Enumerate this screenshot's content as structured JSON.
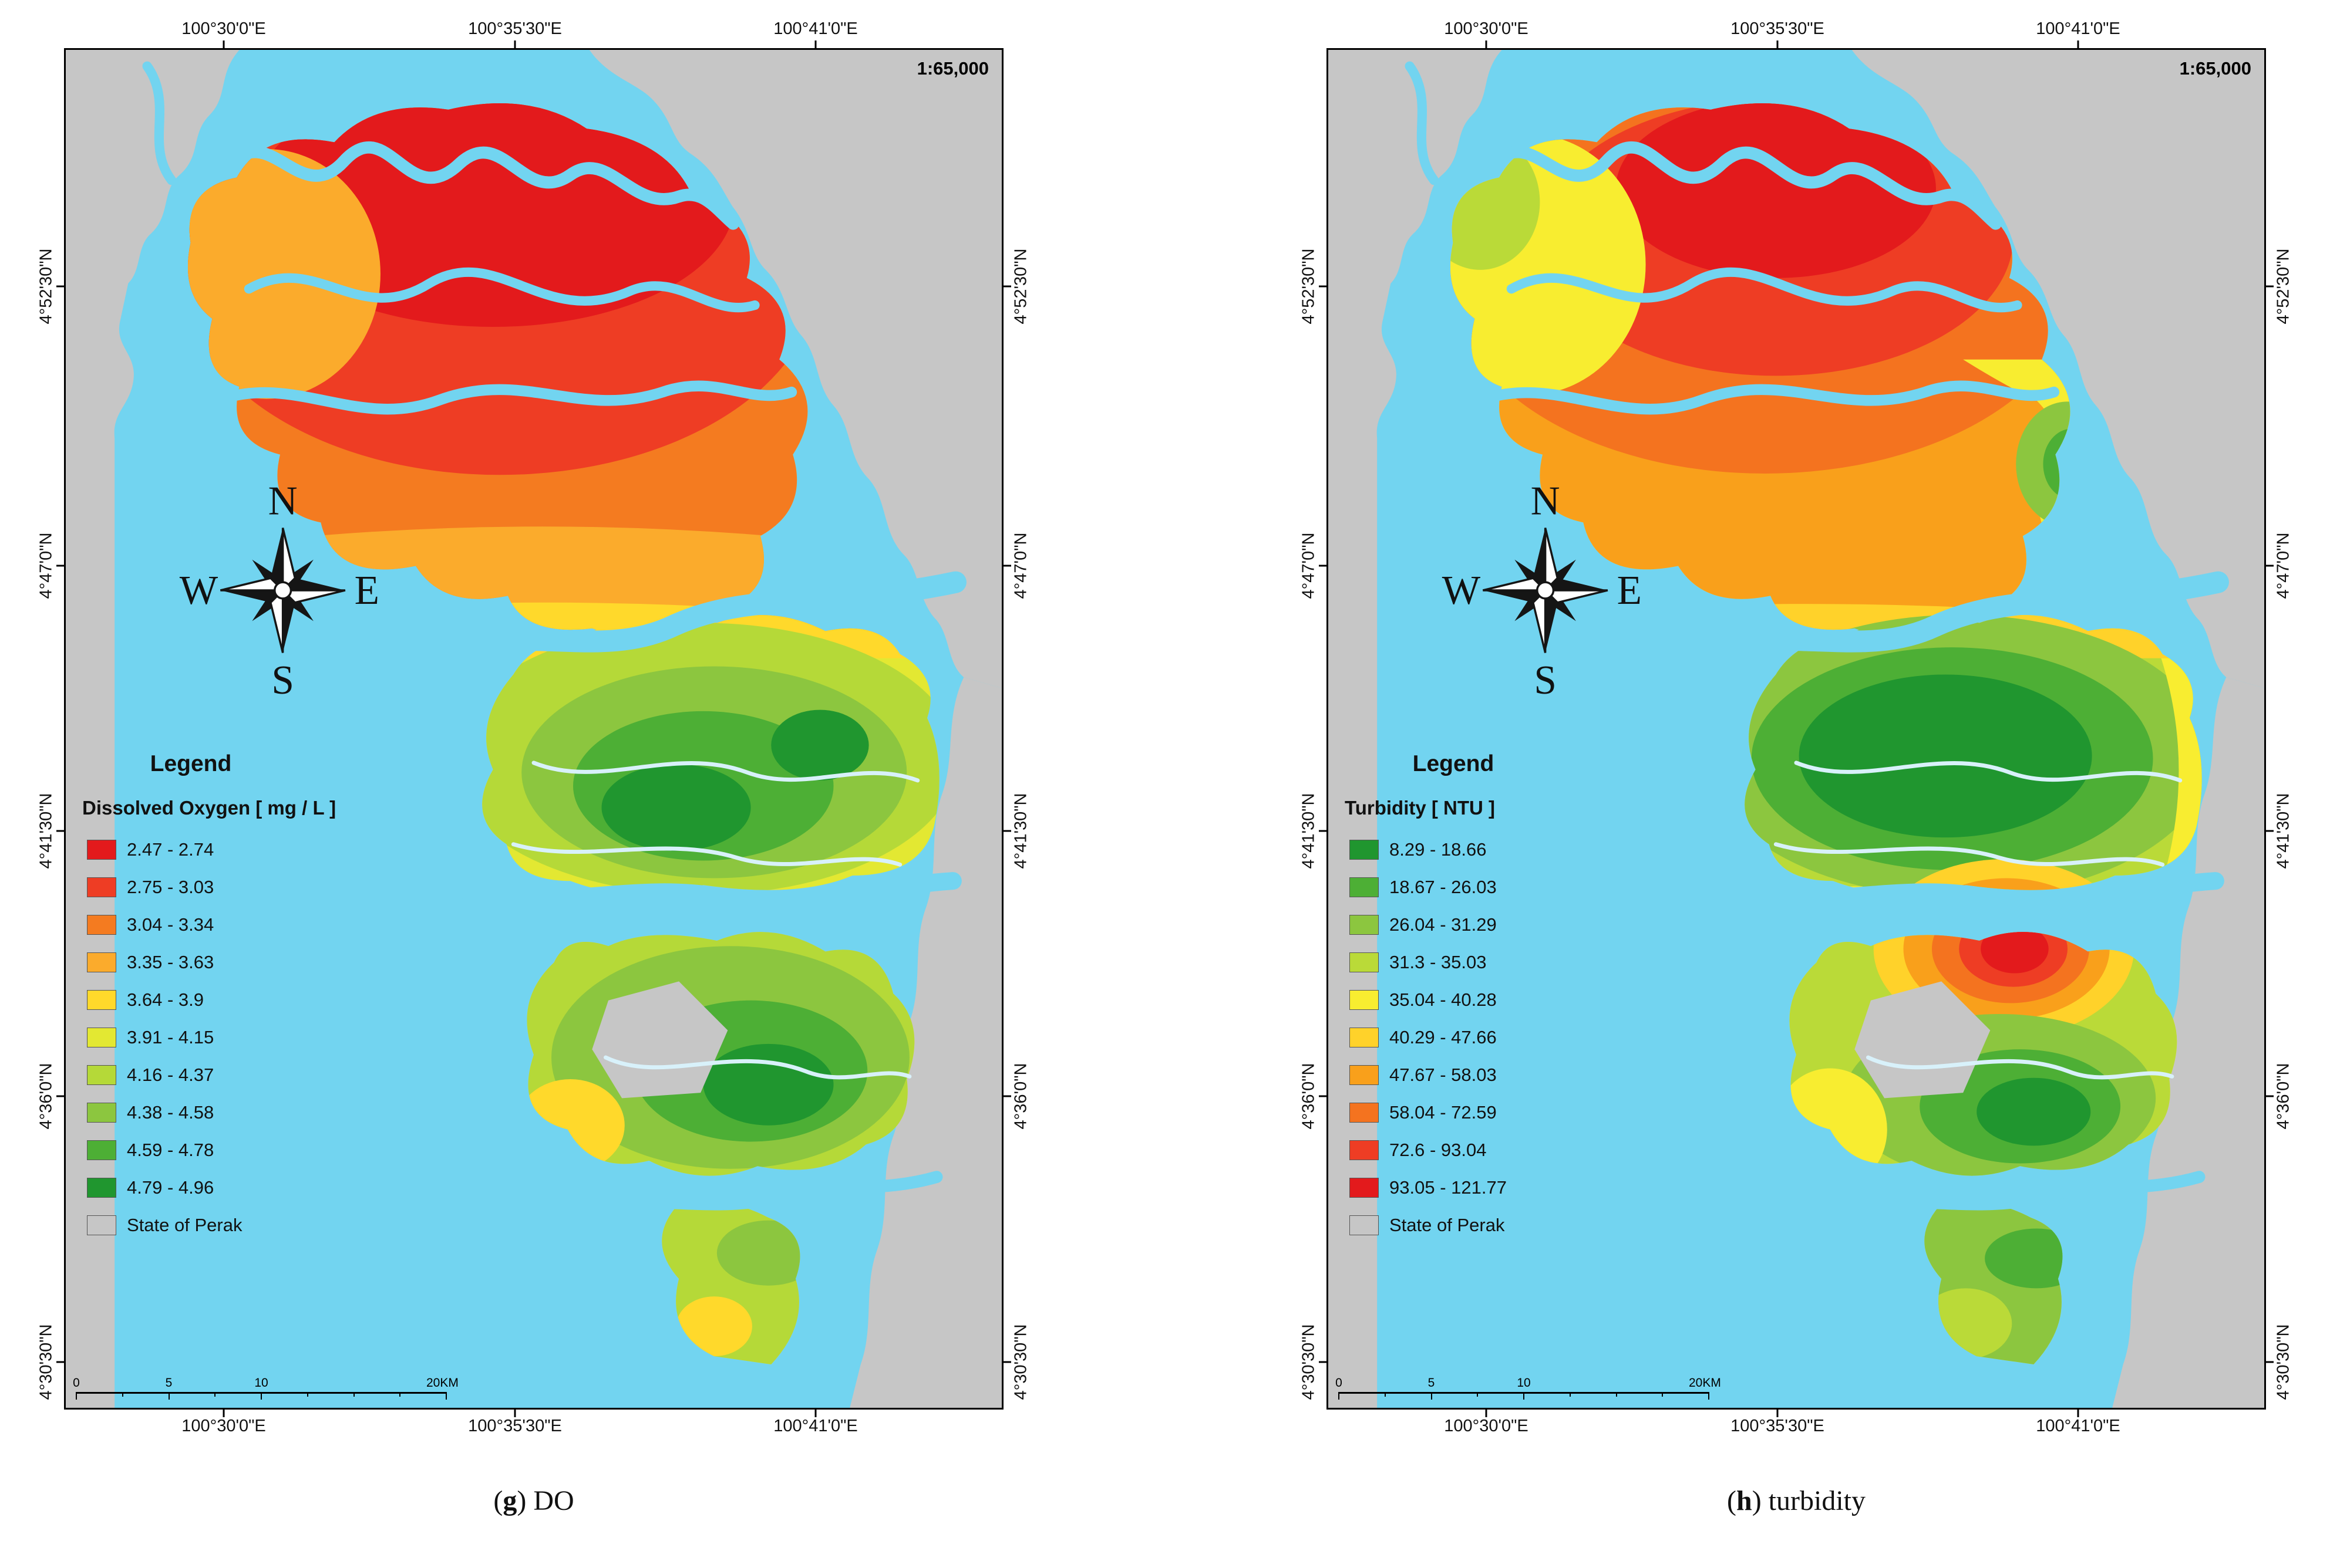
{
  "compass": {
    "n": "N",
    "e": "E",
    "s": "S",
    "w": "W"
  },
  "scalebar": {
    "labels": [
      "0",
      "5",
      "10",
      "20KM"
    ],
    "positions": [
      0,
      25,
      50,
      100
    ],
    "ticks": [
      0,
      12.5,
      25,
      37.5,
      50,
      62.5,
      75,
      87.5,
      100
    ]
  },
  "colors": {
    "sea": "#72d4f0",
    "land": "#c6c6c6",
    "stream": "#d8f1fa",
    "frame": "#000000"
  },
  "maps": [
    {
      "name": "dissolved-oxygen-map",
      "scale_text": "1:65,000",
      "axes": {
        "lon": [
          "100°30'0\"E",
          "100°35'30\"E",
          "100°41'0\"E"
        ],
        "lon_pos": [
          17,
          48,
          80
        ],
        "lat": [
          "4°52'30\"N",
          "4°47'0\"N",
          "4°41'30\"N",
          "4°36'0\"N",
          "4°30'30\"N"
        ],
        "lat_pos": [
          17.5,
          38,
          57.5,
          77,
          96.5
        ]
      },
      "legend": {
        "title": "Legend",
        "subtitle": "Dissolved Oxygen [ mg / L ]",
        "items": [
          {
            "label": "2.47 - 2.74",
            "color": "#e31a1c"
          },
          {
            "label": "2.75 - 3.03",
            "color": "#ee3d24"
          },
          {
            "label": "3.04 - 3.34",
            "color": "#f47b20"
          },
          {
            "label": "3.35 - 3.63",
            "color": "#fbab2c"
          },
          {
            "label": "3.64 - 3.9",
            "color": "#ffd92b"
          },
          {
            "label": "3.91 - 4.15",
            "color": "#e3e832"
          },
          {
            "label": "4.16 - 4.37",
            "color": "#b5d938"
          },
          {
            "label": "4.38 - 4.58",
            "color": "#8cc63f"
          },
          {
            "label": "4.59 - 4.78",
            "color": "#4daf35"
          },
          {
            "label": "4.79 - 4.96",
            "color": "#20962f"
          },
          {
            "label": "State of Perak",
            "color": "#c6c6c6"
          }
        ]
      },
      "caption": {
        "prefix": "(",
        "letter": "g",
        "suffix": ") DO"
      }
    },
    {
      "name": "turbidity-map",
      "scale_text": "1:65,000",
      "axes": {
        "lon": [
          "100°30'0\"E",
          "100°35'30\"E",
          "100°41'0\"E"
        ],
        "lon_pos": [
          17,
          48,
          80
        ],
        "lat": [
          "4°52'30\"N",
          "4°47'0\"N",
          "4°41'30\"N",
          "4°36'0\"N",
          "4°30'30\"N"
        ],
        "lat_pos": [
          17.5,
          38,
          57.5,
          77,
          96.5
        ]
      },
      "legend": {
        "title": "Legend",
        "subtitle": "Turbidity [ NTU ]",
        "items": [
          {
            "label": "8.29 - 18.66",
            "color": "#20962f"
          },
          {
            "label": "18.67 - 26.03",
            "color": "#4daf35"
          },
          {
            "label": "26.04 - 31.29",
            "color": "#8cc63f"
          },
          {
            "label": "31.3 - 35.03",
            "color": "#bada38"
          },
          {
            "label": "35.04 - 40.28",
            "color": "#f8ed30"
          },
          {
            "label": "40.29 - 47.66",
            "color": "#ffd22a"
          },
          {
            "label": "47.67 - 58.03",
            "color": "#f9a01b"
          },
          {
            "label": "58.04 - 72.59",
            "color": "#f4731f"
          },
          {
            "label": "72.6 - 93.04",
            "color": "#ee3d24"
          },
          {
            "label": "93.05 - 121.77",
            "color": "#e31a1c"
          },
          {
            "label": "State of Perak",
            "color": "#c6c6c6"
          }
        ]
      },
      "caption": {
        "prefix": "(",
        "letter": "h",
        "suffix": ") turbidity"
      }
    }
  ]
}
